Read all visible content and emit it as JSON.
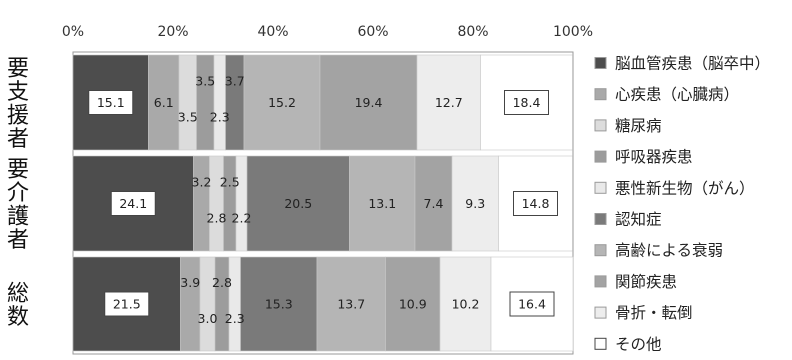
{
  "chart_data": {
    "type": "bar",
    "orientation": "horizontal",
    "stacked": true,
    "percent": true,
    "xlim": [
      0,
      100
    ],
    "tick_labels": [
      "0%",
      "20%",
      "40%",
      "60%",
      "80%",
      "100%"
    ],
    "grid": false,
    "legend_position": "right",
    "groups": [
      {
        "label": "要支援者",
        "values": [
          15.1,
          6.1,
          3.5,
          3.5,
          2.3,
          3.7,
          15.2,
          19.4,
          12.7,
          18.4
        ]
      },
      {
        "label": "要介護者",
        "values": [
          24.1,
          3.2,
          2.8,
          2.5,
          2.2,
          20.5,
          13.1,
          7.4,
          9.3,
          14.8
        ]
      },
      {
        "label": "総数",
        "values": [
          21.5,
          3.9,
          3.0,
          2.8,
          2.3,
          15.3,
          13.7,
          10.9,
          10.2,
          16.4
        ]
      }
    ],
    "series": [
      {
        "name": "脳血管疾患（脳卒中）",
        "color": "#4d4d4d"
      },
      {
        "name": "心疾患（心臓病）",
        "color": "#a9a9a9"
      },
      {
        "name": "糖尿病",
        "color": "#dcdcdc"
      },
      {
        "name": "呼吸器疾患",
        "color": "#9c9c9c"
      },
      {
        "name": "悪性新生物（がん）",
        "color": "#e9e9e9"
      },
      {
        "name": "認知症",
        "color": "#7a7a7a"
      },
      {
        "name": "高齢による衰弱",
        "color": "#b5b5b5"
      },
      {
        "name": "関節疾患",
        "color": "#a3a3a3"
      },
      {
        "name": "骨折・転倒",
        "color": "#ededed"
      },
      {
        "name": "その他",
        "color": "#ffffff"
      }
    ]
  }
}
